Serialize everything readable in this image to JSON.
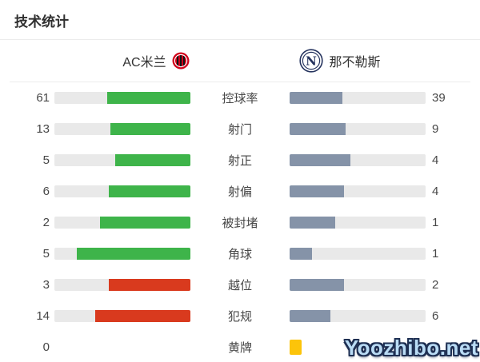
{
  "title": "技术统计",
  "header": {
    "home_team": "AC米兰",
    "away_team": "那不勒斯",
    "home_logo": "ac-milan-crest",
    "away_logo": "napoli-crest"
  },
  "watermark": "Yoozhibo.net",
  "colors": {
    "home_positive": "#3eb44a",
    "home_negative": "#d93a1e",
    "away_fill": "#8593a8",
    "bar_track": "#e9e9e9",
    "yellow_card": "#fcc40a",
    "milan_red": "#d0021b",
    "napoli_navy": "#25335e"
  },
  "chart_data": {
    "type": "bar",
    "title": "技术统计",
    "teams": [
      "AC米兰",
      "那不勒斯"
    ],
    "orientation": "horizontal-paired",
    "note": "fill fraction = value / (home+away); home bars fill from right, away bars fill from left",
    "rows": [
      {
        "label": "控球率",
        "home": 61,
        "away": 39,
        "home_color": "#3eb44a",
        "away_color": "#8593a8"
      },
      {
        "label": "射门",
        "home": 13,
        "away": 9,
        "home_color": "#3eb44a",
        "away_color": "#8593a8"
      },
      {
        "label": "射正",
        "home": 5,
        "away": 4,
        "home_color": "#3eb44a",
        "away_color": "#8593a8"
      },
      {
        "label": "射偏",
        "home": 6,
        "away": 4,
        "home_color": "#3eb44a",
        "away_color": "#8593a8"
      },
      {
        "label": "被封堵",
        "home": 2,
        "away": 1,
        "home_color": "#3eb44a",
        "away_color": "#8593a8"
      },
      {
        "label": "角球",
        "home": 5,
        "away": 1,
        "home_color": "#3eb44a",
        "away_color": "#8593a8"
      },
      {
        "label": "越位",
        "home": 3,
        "away": 2,
        "home_color": "#d93a1e",
        "away_color": "#8593a8"
      },
      {
        "label": "犯规",
        "home": 14,
        "away": 6,
        "home_color": "#d93a1e",
        "away_color": "#8593a8"
      },
      {
        "label": "黄牌",
        "home": 0,
        "away_cards": 1
      }
    ]
  }
}
